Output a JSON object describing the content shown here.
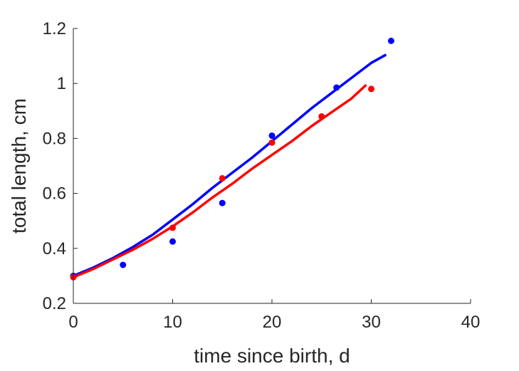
{
  "chart_data": {
    "type": "scatter",
    "title": "",
    "xlabel": "time since birth, d",
    "ylabel": "total length, cm",
    "xlim": [
      0,
      40
    ],
    "ylim": [
      0.2,
      1.2
    ],
    "xticks": [
      0,
      10,
      20,
      30,
      40
    ],
    "yticks": [
      0.2,
      0.4,
      0.6,
      0.8,
      1.0,
      1.2
    ],
    "xtick_labels": [
      "0",
      "10",
      "20",
      "30",
      "40"
    ],
    "ytick_labels": [
      "0.2",
      "0.4",
      "0.6",
      "0.8",
      "1",
      "1.2"
    ],
    "grid": false,
    "legend": "none",
    "series": [
      {
        "color": "#0000ff",
        "points": [
          {
            "x": 0,
            "y": 0.3
          },
          {
            "x": 5,
            "y": 0.34
          },
          {
            "x": 10,
            "y": 0.425
          },
          {
            "x": 15,
            "y": 0.565
          },
          {
            "x": 20,
            "y": 0.81
          },
          {
            "x": 26.5,
            "y": 0.985
          },
          {
            "x": 32,
            "y": 1.155
          }
        ],
        "fit": [
          {
            "x": 0,
            "y": 0.3
          },
          {
            "x": 2,
            "y": 0.33
          },
          {
            "x": 4,
            "y": 0.365
          },
          {
            "x": 6,
            "y": 0.405
          },
          {
            "x": 8,
            "y": 0.45
          },
          {
            "x": 10,
            "y": 0.505
          },
          {
            "x": 12,
            "y": 0.56
          },
          {
            "x": 14,
            "y": 0.62
          },
          {
            "x": 16,
            "y": 0.675
          },
          {
            "x": 18,
            "y": 0.73
          },
          {
            "x": 20,
            "y": 0.79
          },
          {
            "x": 22,
            "y": 0.85
          },
          {
            "x": 24,
            "y": 0.91
          },
          {
            "x": 26,
            "y": 0.965
          },
          {
            "x": 28,
            "y": 1.02
          },
          {
            "x": 30,
            "y": 1.075
          },
          {
            "x": 31.5,
            "y": 1.105
          }
        ]
      },
      {
        "color": "#ff0000",
        "points": [
          {
            "x": 0,
            "y": 0.295
          },
          {
            "x": 10,
            "y": 0.475
          },
          {
            "x": 15,
            "y": 0.655
          },
          {
            "x": 20,
            "y": 0.785
          },
          {
            "x": 25,
            "y": 0.88
          },
          {
            "x": 30,
            "y": 0.98
          }
        ],
        "fit": [
          {
            "x": 0,
            "y": 0.295
          },
          {
            "x": 2,
            "y": 0.325
          },
          {
            "x": 4,
            "y": 0.36
          },
          {
            "x": 6,
            "y": 0.395
          },
          {
            "x": 8,
            "y": 0.435
          },
          {
            "x": 10,
            "y": 0.48
          },
          {
            "x": 12,
            "y": 0.53
          },
          {
            "x": 14,
            "y": 0.585
          },
          {
            "x": 16,
            "y": 0.635
          },
          {
            "x": 18,
            "y": 0.69
          },
          {
            "x": 20,
            "y": 0.74
          },
          {
            "x": 22,
            "y": 0.79
          },
          {
            "x": 24,
            "y": 0.845
          },
          {
            "x": 26,
            "y": 0.895
          },
          {
            "x": 28,
            "y": 0.945
          },
          {
            "x": 29.5,
            "y": 0.995
          }
        ]
      }
    ]
  }
}
